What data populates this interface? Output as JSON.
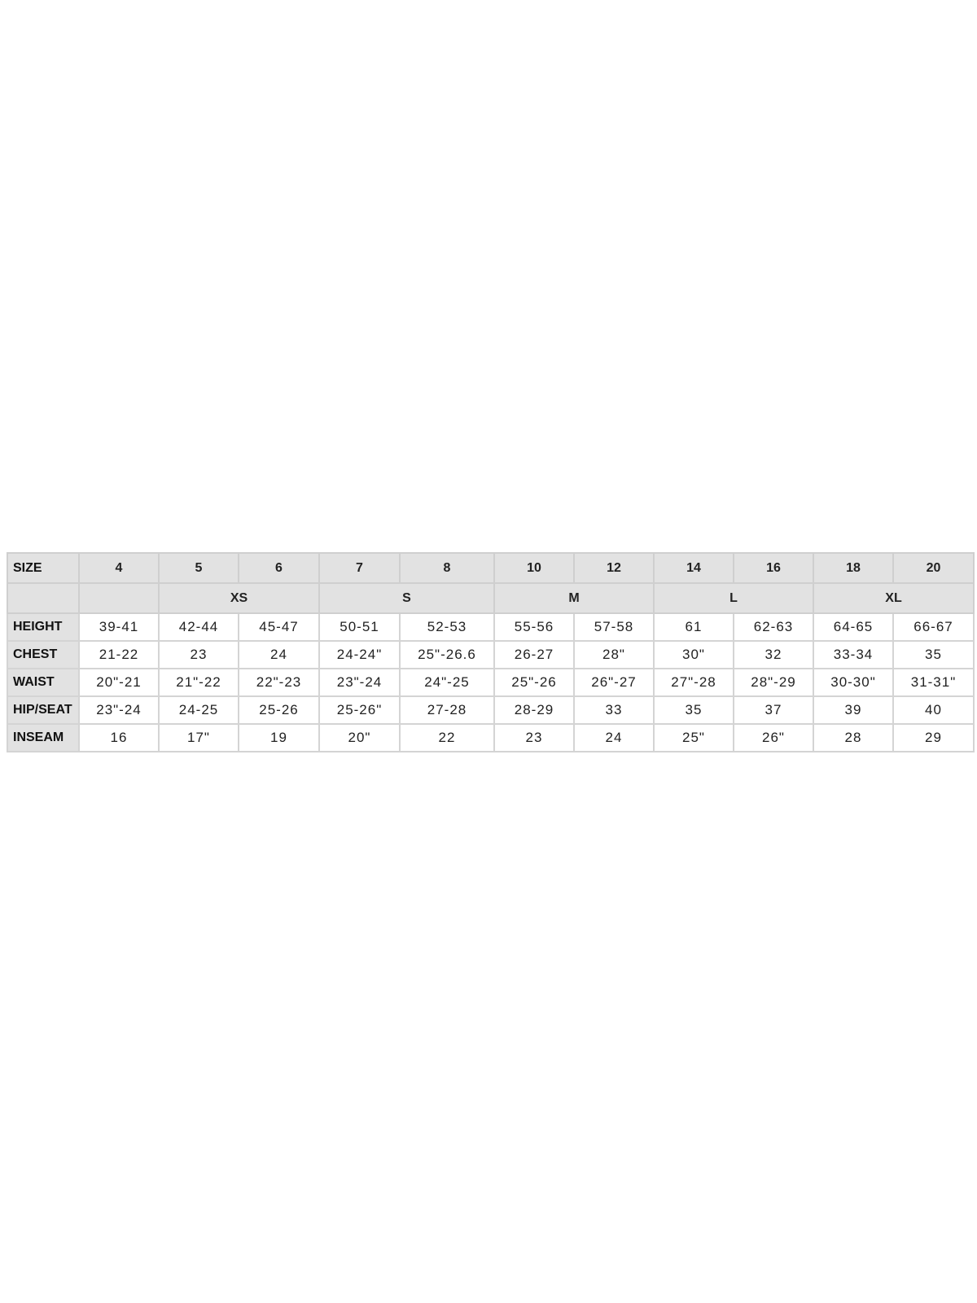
{
  "size_label": "SIZE",
  "sizes": [
    "4",
    "5",
    "6",
    "7",
    "8",
    "10",
    "12",
    "14",
    "16",
    "18",
    "20"
  ],
  "groups": [
    {
      "label": "",
      "span": 1
    },
    {
      "label": "XS",
      "span": 2
    },
    {
      "label": "S",
      "span": 2
    },
    {
      "label": "M",
      "span": 2
    },
    {
      "label": "L",
      "span": 2
    },
    {
      "label": "XL",
      "span": 2
    }
  ],
  "rows": [
    {
      "label": "HEIGHT",
      "values": [
        "39-41",
        "42-44",
        "45-47",
        "50-51",
        "52-53",
        "55-56",
        "57-58",
        "61",
        "62-63",
        "64-65",
        "66-67"
      ]
    },
    {
      "label": "CHEST",
      "values": [
        "21-22",
        "23",
        "24",
        "24-24\"",
        "25\"-26.6",
        "26-27",
        "28\"",
        "30\"",
        "32",
        "33-34",
        "35"
      ]
    },
    {
      "label": "WAIST",
      "values": [
        "20\"-21",
        "21\"-22",
        "22\"-23",
        "23\"-24",
        "24\"-25",
        "25\"-26",
        "26\"-27",
        "27\"-28",
        "28\"-29",
        "30-30\"",
        "31-31\""
      ]
    },
    {
      "label": "HIP/SEAT",
      "values": [
        "23\"-24",
        "24-25",
        "25-26",
        "25-26\"",
        "27-28",
        "28-29",
        "33",
        "35",
        "37",
        "39",
        "40"
      ]
    },
    {
      "label": "INSEAM",
      "values": [
        "16",
        "17\"",
        "19",
        "20\"",
        "22",
        "23",
        "24",
        "25\"",
        "26\"",
        "28",
        "29"
      ]
    }
  ]
}
